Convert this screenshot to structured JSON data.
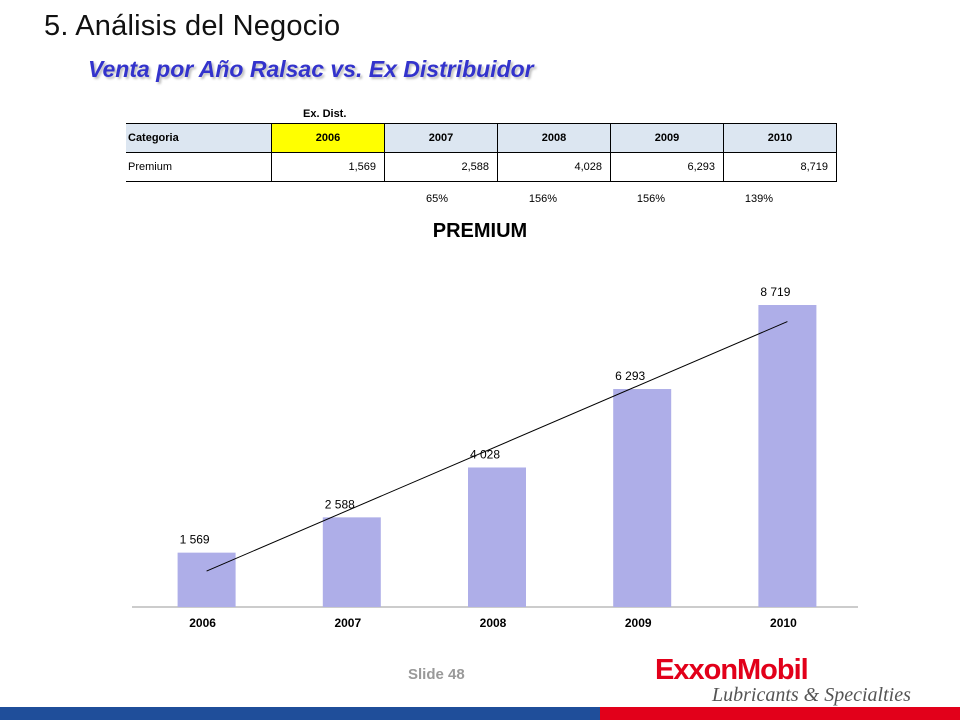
{
  "slide": {
    "title": "5.  Análisis del Negocio",
    "subtitle": "Venta por Año Ralsac vs. Ex Distribuidor",
    "footer_label": "Slide 48",
    "logo_text": "ExxonMobil",
    "logo_subtext": "Lubricants & Specialties",
    "colors": {
      "subtitle": "#3333cc",
      "bar_fill": "#aeaee8",
      "highlight": "#ffff00",
      "header_bg": "#dce6f1",
      "footer_blue": "#1f4e9a",
      "footer_red": "#e2001a"
    }
  },
  "table": {
    "above_label": "Ex. Dist.",
    "header": [
      "Categoria",
      "2006",
      "2007",
      "2008",
      "2009",
      "2010"
    ],
    "rows": [
      {
        "category": "Premium",
        "values": [
          "1,569",
          "2,588",
          "4,028",
          "6,293",
          "8,719"
        ]
      }
    ],
    "growth": [
      "65%",
      "156%",
      "156%",
      "139%"
    ]
  },
  "chart_data": {
    "type": "bar",
    "title": "PREMIUM",
    "categories": [
      "2006",
      "2007",
      "2008",
      "2009",
      "2010"
    ],
    "values": [
      1569,
      2588,
      4028,
      6293,
      8719
    ],
    "value_labels": [
      "1 569",
      "2 588",
      "4 028",
      "6 293",
      "8 719"
    ],
    "trendline": true,
    "grid": false,
    "legend": "none"
  }
}
